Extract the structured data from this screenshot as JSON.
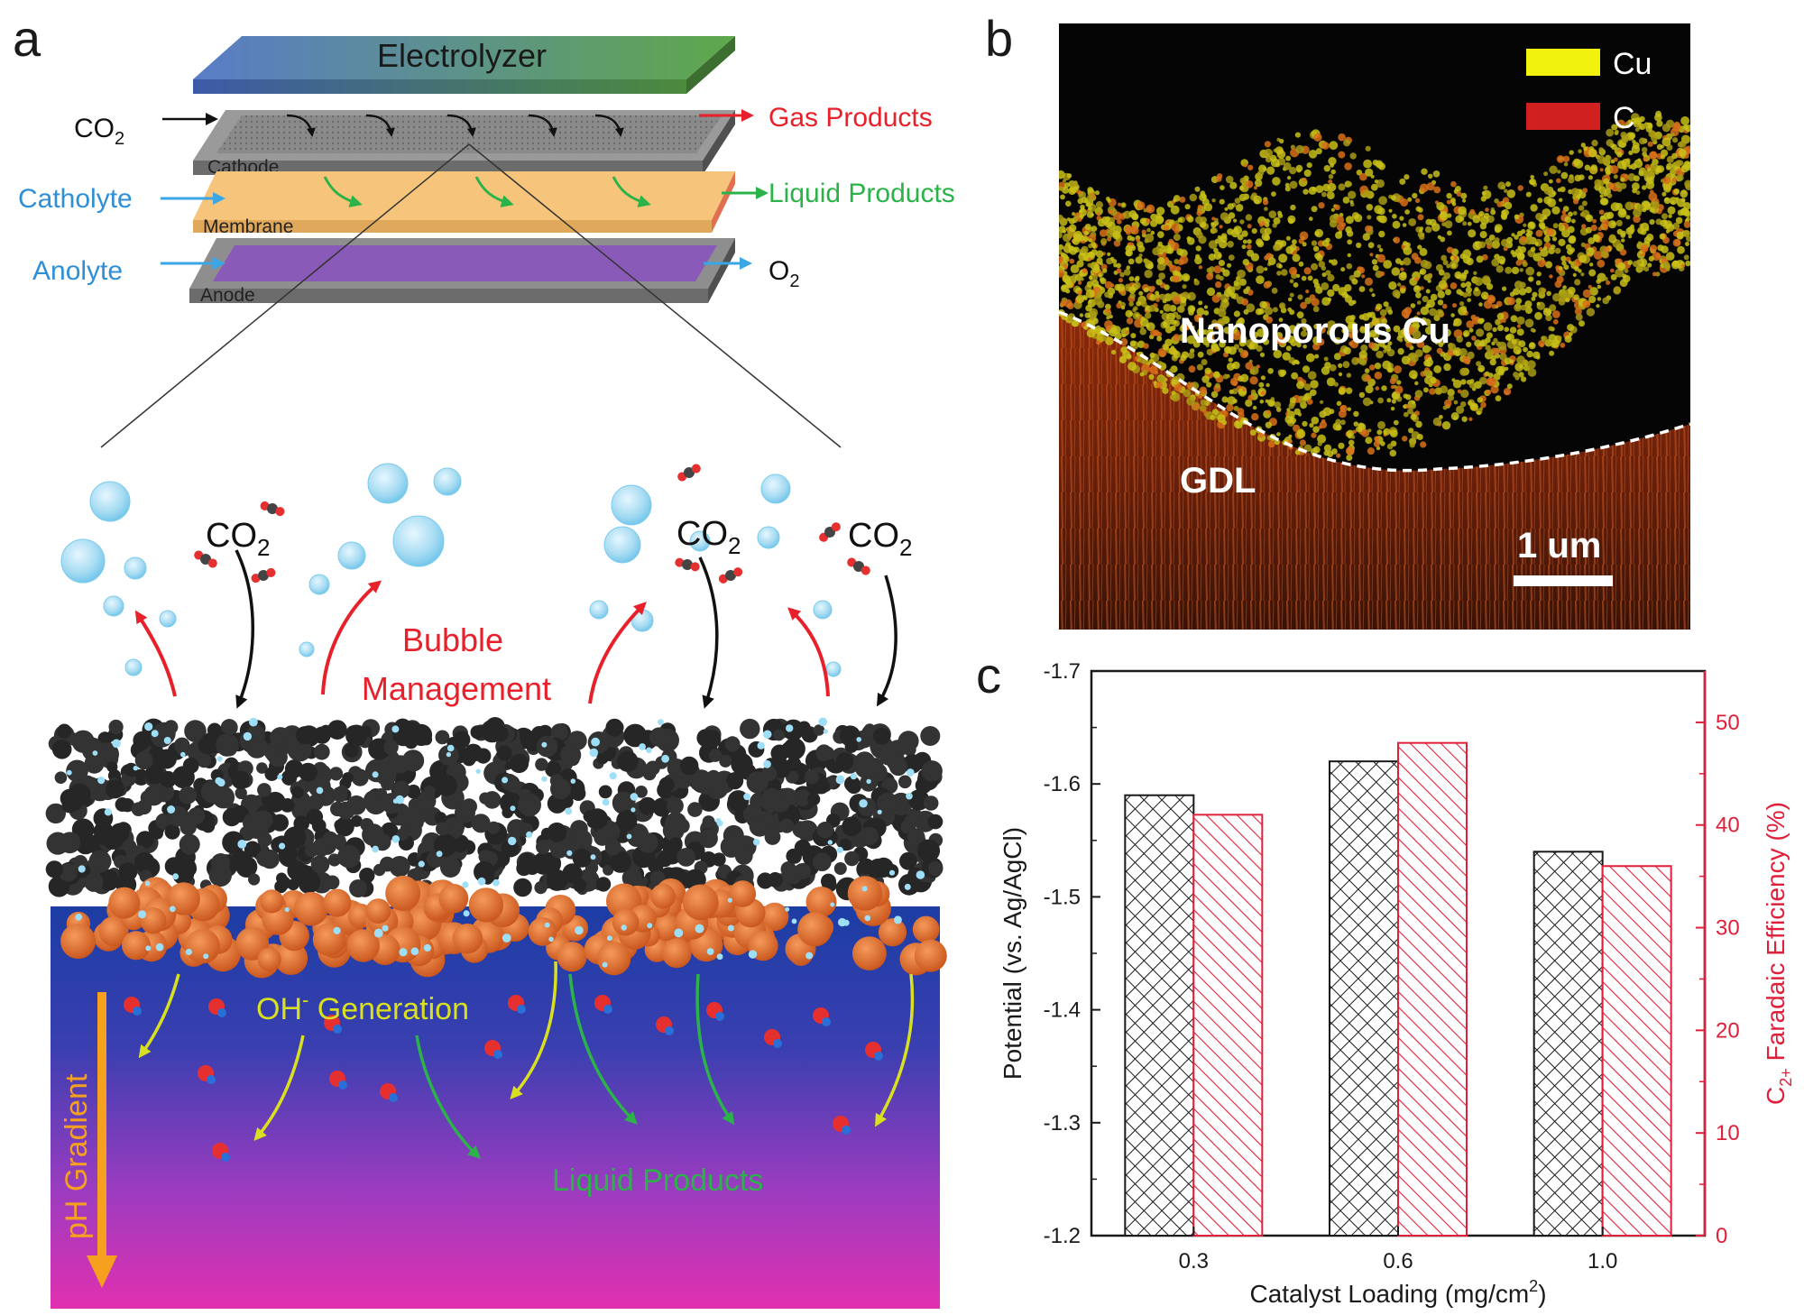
{
  "panels": {
    "a": "a",
    "b": "b",
    "c": "c"
  },
  "panel_a": {
    "electrolyzer": "Electrolyzer",
    "co2_in": "CO",
    "co2_sub": "2",
    "gas_products": "Gas Products",
    "cathode": "Cathode",
    "catholyte": "Catholyte",
    "membrane": "Membrane",
    "liquid_products": "Liquid Products",
    "anolyte": "Anolyte",
    "anode": "Anode",
    "o2": "O",
    "o2_sub": "2",
    "bubble_line1": "Bubble",
    "bubble_line2": "Management",
    "oh": "OH",
    "oh_sup": "-",
    "oh_rest": " Generation",
    "liquid_products_bottom": "Liquid Products",
    "ph_gradient": "pH Gradient",
    "co2_labels": [
      {
        "text": "CO",
        "sub": "2"
      },
      {
        "text": "CO",
        "sub": "2"
      },
      {
        "text": "CO",
        "sub": "2"
      }
    ],
    "colors": {
      "gas": "#e8202a",
      "liquid": "#2bb34a",
      "blue_label": "#2f8fd6",
      "oh": "#d8e020",
      "ph": "#f5a623",
      "bubble_arrow": "#e8202a"
    }
  },
  "panel_b": {
    "legend": [
      {
        "label": "Cu",
        "color": "#f2f20f"
      },
      {
        "label": "C",
        "color": "#d02020"
      }
    ],
    "nanoporous": "Nanoporous Cu",
    "gdl": "GDL",
    "scale": "1 um"
  },
  "chart_data": {
    "type": "bar",
    "xlabel": "Catalyst Loading (mg/cm",
    "xlabel_sup": "2",
    "xlabel_end": ")",
    "categories": [
      "0.3",
      "0.6",
      "1.0"
    ],
    "left_axis": {
      "label": "Potential (vs. Ag/AgCl)",
      "ylim": [
        -1.2,
        -1.7
      ],
      "ticks": [
        "-1.7",
        "-1.6",
        "-1.5",
        "-1.4",
        "-1.3",
        "-1.2"
      ],
      "tick_values": [
        -1.7,
        -1.6,
        -1.5,
        -1.4,
        -1.3,
        -1.2
      ],
      "color": "#1a1a1a"
    },
    "right_axis": {
      "label_pre": "C",
      "label_sub": "2+",
      "label_post": " Faradaic Efficiency (%)",
      "ylim": [
        0,
        55
      ],
      "ticks": [
        "0",
        "10",
        "20",
        "30",
        "40",
        "50"
      ],
      "tick_values": [
        0,
        10,
        20,
        30,
        40,
        50
      ],
      "color": "#e0203a"
    },
    "series": [
      {
        "axis": "left",
        "values": [
          -1.59,
          -1.62,
          -1.54
        ],
        "color": "#1a1a1a",
        "pattern": "crosshatch"
      },
      {
        "axis": "right",
        "values": [
          41,
          48,
          36
        ],
        "color": "#e0203a",
        "pattern": "diagonal"
      }
    ]
  }
}
